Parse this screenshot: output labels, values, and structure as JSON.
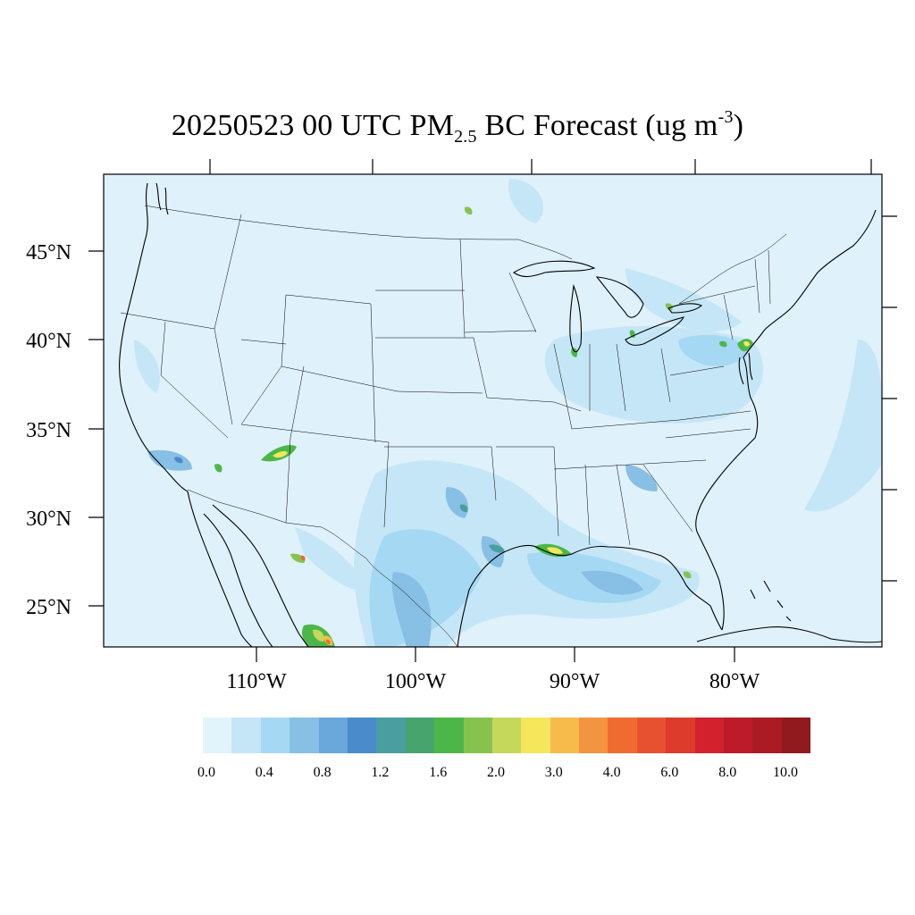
{
  "title": {
    "date_time": "20250523 00 UTC",
    "quantity": "PM",
    "quantity_sub": "2.5",
    "rest": " BC Forecast (ug m",
    "unit_sup": "-3",
    "close": ")"
  },
  "lat_labels": [
    "45°N",
    "40°N",
    "35°N",
    "30°N",
    "25°N"
  ],
  "lon_labels": [
    "110°W",
    "100°W",
    "90°W",
    "80°W"
  ],
  "colorbar": {
    "colors": [
      "#e1f3fb",
      "#c5e6f6",
      "#a5d8f3",
      "#88bfe4",
      "#6aa7da",
      "#4a8bcc",
      "#4a9ea0",
      "#47a46d",
      "#4cb748",
      "#86c34e",
      "#c5d85b",
      "#f5e65c",
      "#f6bb4b",
      "#f29440",
      "#ef6b2f",
      "#e85130",
      "#dd3b2b",
      "#d3212e",
      "#bd1b2a",
      "#aa1b24",
      "#911a1e"
    ],
    "tick_labels": [
      "0.0",
      "0.4",
      "0.8",
      "1.2",
      "1.6",
      "2.0",
      "3.0",
      "4.0",
      "6.0",
      "8.0",
      "10.0"
    ]
  },
  "map": {
    "background_color": "#dff1fb",
    "features": "contiguous US states, southern Canada, northern Mexico, Gulf of Mexico, western Atlantic"
  }
}
